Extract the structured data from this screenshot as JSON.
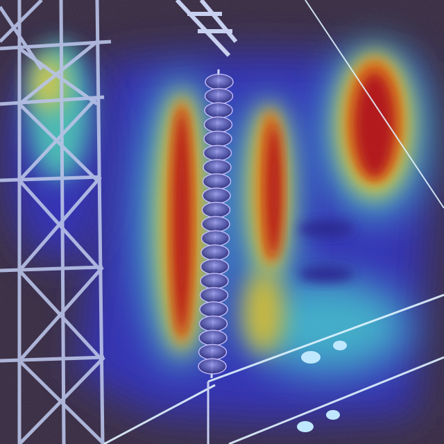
{
  "image": {
    "subject": "aerial-view-transmission-tower-insulator-string-with-attention-heatmap",
    "colors": {
      "ground_dark": "#2b1f33",
      "ground_mid": "#3a2f4a",
      "tower_steel": "#b9c3e8",
      "tower_shadow": "#6f7bb0",
      "insulator_disc": "#5a5aa8",
      "insulator_rim": "#c8c0ff",
      "wire": "#e0f4ff",
      "heat_red": "#d21b1b",
      "heat_orange": "#f07a16",
      "heat_yellow": "#f1e33a",
      "heat_cyan": "#4fd0e0",
      "heat_blue": "#3e3ed8"
    },
    "heatmap_peaks": [
      {
        "id": "left-vertical-band",
        "intensity": 1.0
      },
      {
        "id": "center-right-vertical-band",
        "intensity": 0.95
      },
      {
        "id": "upper-right-blob",
        "intensity": 1.0
      },
      {
        "id": "tower-upper-left",
        "intensity": 0.7
      },
      {
        "id": "lower-center-right",
        "intensity": 0.55
      }
    ]
  }
}
